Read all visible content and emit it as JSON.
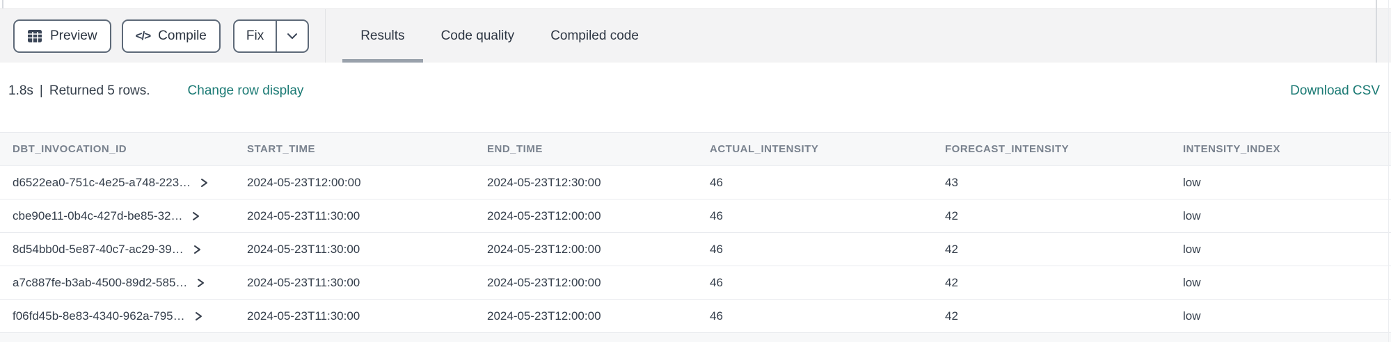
{
  "toolbar": {
    "preview_label": "Preview",
    "compile_label": "Compile",
    "fix_label": "Fix",
    "tabs": [
      {
        "label": "Results",
        "active": true
      },
      {
        "label": "Code quality",
        "active": false
      },
      {
        "label": "Compiled code",
        "active": false
      }
    ]
  },
  "status_bar": {
    "duration": "1.8s",
    "separator": "|",
    "row_count_text": "Returned 5 rows.",
    "change_row_display_label": "Change row display",
    "download_csv_label": "Download CSV"
  },
  "results_table": {
    "columns": [
      "DBT_INVOCATION_ID",
      "START_TIME",
      "END_TIME",
      "ACTUAL_INTENSITY",
      "FORECAST_INTENSITY",
      "INTENSITY_INDEX"
    ],
    "rows": [
      {
        "dbt_invocation_id": "d6522ea0-751c-4e25-a748-223…",
        "start_time": "2024-05-23T12:00:00",
        "end_time": "2024-05-23T12:30:00",
        "actual_intensity": 46,
        "forecast_intensity": 43,
        "intensity_index": "low"
      },
      {
        "dbt_invocation_id": "cbe90e11-0b4c-427d-be85-32…",
        "start_time": "2024-05-23T11:30:00",
        "end_time": "2024-05-23T12:00:00",
        "actual_intensity": 46,
        "forecast_intensity": 42,
        "intensity_index": "low"
      },
      {
        "dbt_invocation_id": "8d54bb0d-5e87-40c7-ac29-39…",
        "start_time": "2024-05-23T11:30:00",
        "end_time": "2024-05-23T12:00:00",
        "actual_intensity": 46,
        "forecast_intensity": 42,
        "intensity_index": "low"
      },
      {
        "dbt_invocation_id": "a7c887fe-b3ab-4500-89d2-585…",
        "start_time": "2024-05-23T11:30:00",
        "end_time": "2024-05-23T12:00:00",
        "actual_intensity": 46,
        "forecast_intensity": 42,
        "intensity_index": "low"
      },
      {
        "dbt_invocation_id": "f06fd45b-8e83-4340-962a-795…",
        "start_time": "2024-05-23T11:30:00",
        "end_time": "2024-05-23T12:00:00",
        "actual_intensity": 46,
        "forecast_intensity": 42,
        "intensity_index": "low"
      }
    ]
  },
  "icons": {
    "preview_button": "table-grid-icon",
    "compile_button": "code-icon",
    "fix_dropdown": "chevron-down-icon",
    "row_expand": "chevron-right-icon"
  },
  "colors": {
    "accent_teal": "#1b7a74",
    "toolbar_bg": "#f3f3f4",
    "button_border": "#5d6978",
    "active_tab_underline": "#99a1ab",
    "header_text": "#79828e",
    "cell_text": "#333d4a",
    "row_border": "#e9ebef"
  }
}
